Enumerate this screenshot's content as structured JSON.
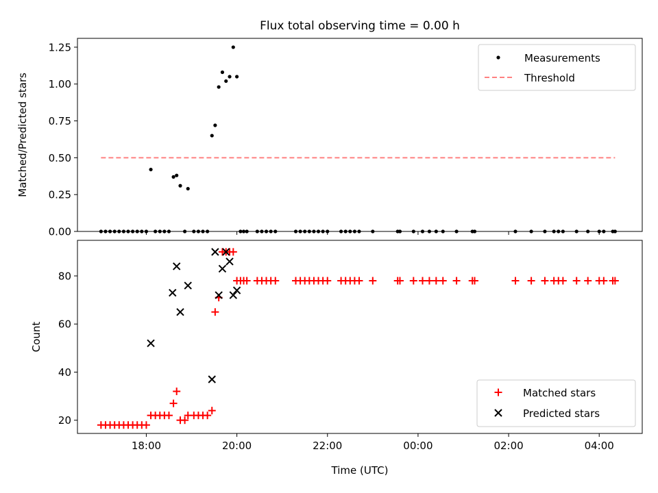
{
  "chart_data": [
    {
      "type": "scatter",
      "title": "Flux total observing time = 0.00 h",
      "ylabel": "Matched/Predicted stars",
      "xlabel": "",
      "x_unit": "hours since 00:00 of the first observing day",
      "xlim": [
        16.48,
        28.95
      ],
      "ylim": [
        0,
        1.31
      ],
      "yticks": [
        0.0,
        0.25,
        0.5,
        0.75,
        1.0,
        1.25
      ],
      "ytick_labels": [
        "0.00",
        "0.25",
        "0.50",
        "0.75",
        "1.00",
        "1.25"
      ],
      "legend": {
        "position": "top-right",
        "entries": [
          "Measurements",
          "Threshold"
        ]
      },
      "series": [
        {
          "name": "Measurements",
          "style": "dot",
          "color": "#000000",
          "points": [
            [
              17.0,
              0
            ],
            [
              17.1,
              0
            ],
            [
              17.2,
              0
            ],
            [
              17.3,
              0
            ],
            [
              17.4,
              0
            ],
            [
              17.5,
              0
            ],
            [
              17.6,
              0
            ],
            [
              17.7,
              0
            ],
            [
              17.8,
              0
            ],
            [
              17.9,
              0
            ],
            [
              18.0,
              0
            ],
            [
              18.1,
              0.42
            ],
            [
              18.2,
              0
            ],
            [
              18.3,
              0
            ],
            [
              18.4,
              0
            ],
            [
              18.5,
              0
            ],
            [
              18.6,
              0.37
            ],
            [
              18.67,
              0.38
            ],
            [
              18.75,
              0.31
            ],
            [
              18.85,
              0
            ],
            [
              18.92,
              0.29
            ],
            [
              19.05,
              0
            ],
            [
              19.15,
              0
            ],
            [
              19.25,
              0
            ],
            [
              19.35,
              0
            ],
            [
              19.45,
              0.65
            ],
            [
              19.52,
              0.72
            ],
            [
              19.6,
              0.98
            ],
            [
              19.68,
              1.08
            ],
            [
              19.76,
              1.02
            ],
            [
              19.84,
              1.05
            ],
            [
              19.92,
              1.25
            ],
            [
              20.0,
              1.05
            ],
            [
              20.08,
              0
            ],
            [
              20.15,
              0
            ],
            [
              20.22,
              0
            ],
            [
              20.45,
              0
            ],
            [
              20.55,
              0
            ],
            [
              20.65,
              0
            ],
            [
              20.75,
              0
            ],
            [
              20.85,
              0
            ],
            [
              21.3,
              0
            ],
            [
              21.4,
              0
            ],
            [
              21.5,
              0
            ],
            [
              21.6,
              0
            ],
            [
              21.7,
              0
            ],
            [
              21.8,
              0
            ],
            [
              21.9,
              0
            ],
            [
              22.0,
              0
            ],
            [
              22.3,
              0
            ],
            [
              22.4,
              0
            ],
            [
              22.5,
              0
            ],
            [
              22.6,
              0
            ],
            [
              22.7,
              0
            ],
            [
              23.0,
              0
            ],
            [
              23.55,
              0
            ],
            [
              23.6,
              0
            ],
            [
              23.9,
              0
            ],
            [
              24.1,
              0
            ],
            [
              24.25,
              0
            ],
            [
              24.4,
              0
            ],
            [
              24.55,
              0
            ],
            [
              24.85,
              0
            ],
            [
              25.2,
              0
            ],
            [
              25.25,
              0
            ],
            [
              26.15,
              0
            ],
            [
              26.5,
              0
            ],
            [
              26.8,
              0
            ],
            [
              27.0,
              0
            ],
            [
              27.1,
              0
            ],
            [
              27.2,
              0
            ],
            [
              27.5,
              0
            ],
            [
              27.75,
              0
            ],
            [
              28.0,
              0
            ],
            [
              28.1,
              0
            ],
            [
              28.3,
              0
            ],
            [
              28.35,
              0
            ]
          ]
        },
        {
          "name": "Threshold",
          "style": "dashed-line",
          "color": "#ff8080",
          "x": [
            17.0,
            28.35
          ],
          "y": [
            0.5,
            0.5
          ]
        }
      ]
    },
    {
      "type": "scatter",
      "title": "",
      "ylabel": "Count",
      "xlabel": "Time (UTC)",
      "x_unit": "hours since 00:00 of the first observing day",
      "xlim": [
        16.48,
        28.95
      ],
      "ylim": [
        14.5,
        94.8
      ],
      "xticks": [
        18,
        20,
        22,
        24,
        26,
        28
      ],
      "xtick_labels": [
        "18:00",
        "20:00",
        "22:00",
        "00:00",
        "02:00",
        "04:00"
      ],
      "yticks": [
        20,
        40,
        60,
        80
      ],
      "ytick_labels": [
        "20",
        "40",
        "60",
        "80"
      ],
      "legend": {
        "position": "bottom-right",
        "entries": [
          "Matched stars",
          "Predicted stars"
        ]
      },
      "series": [
        {
          "name": "Matched stars",
          "marker": "plus",
          "color": "#ff0000",
          "points": [
            [
              17.0,
              18
            ],
            [
              17.1,
              18
            ],
            [
              17.2,
              18
            ],
            [
              17.3,
              18
            ],
            [
              17.4,
              18
            ],
            [
              17.5,
              18
            ],
            [
              17.6,
              18
            ],
            [
              17.7,
              18
            ],
            [
              17.8,
              18
            ],
            [
              17.9,
              18
            ],
            [
              18.0,
              18
            ],
            [
              18.1,
              22
            ],
            [
              18.2,
              22
            ],
            [
              18.3,
              22
            ],
            [
              18.4,
              22
            ],
            [
              18.5,
              22
            ],
            [
              18.6,
              27
            ],
            [
              18.67,
              32
            ],
            [
              18.75,
              20
            ],
            [
              18.85,
              20
            ],
            [
              18.92,
              22
            ],
            [
              19.05,
              22
            ],
            [
              19.15,
              22
            ],
            [
              19.25,
              22
            ],
            [
              19.35,
              22
            ],
            [
              19.45,
              24
            ],
            [
              19.52,
              65
            ],
            [
              19.6,
              71
            ],
            [
              19.68,
              90
            ],
            [
              19.76,
              90
            ],
            [
              19.84,
              90
            ],
            [
              19.92,
              90
            ],
            [
              20.0,
              78
            ],
            [
              20.08,
              78
            ],
            [
              20.15,
              78
            ],
            [
              20.22,
              78
            ],
            [
              20.45,
              78
            ],
            [
              20.55,
              78
            ],
            [
              20.65,
              78
            ],
            [
              20.75,
              78
            ],
            [
              20.85,
              78
            ],
            [
              21.3,
              78
            ],
            [
              21.4,
              78
            ],
            [
              21.5,
              78
            ],
            [
              21.6,
              78
            ],
            [
              21.7,
              78
            ],
            [
              21.8,
              78
            ],
            [
              21.9,
              78
            ],
            [
              22.0,
              78
            ],
            [
              22.3,
              78
            ],
            [
              22.4,
              78
            ],
            [
              22.5,
              78
            ],
            [
              22.6,
              78
            ],
            [
              22.7,
              78
            ],
            [
              23.0,
              78
            ],
            [
              23.55,
              78
            ],
            [
              23.6,
              78
            ],
            [
              23.9,
              78
            ],
            [
              24.1,
              78
            ],
            [
              24.25,
              78
            ],
            [
              24.4,
              78
            ],
            [
              24.55,
              78
            ],
            [
              24.85,
              78
            ],
            [
              25.2,
              78
            ],
            [
              25.25,
              78
            ],
            [
              26.15,
              78
            ],
            [
              26.5,
              78
            ],
            [
              26.8,
              78
            ],
            [
              27.0,
              78
            ],
            [
              27.1,
              78
            ],
            [
              27.2,
              78
            ],
            [
              27.5,
              78
            ],
            [
              27.75,
              78
            ],
            [
              28.0,
              78
            ],
            [
              28.1,
              78
            ],
            [
              28.3,
              78
            ],
            [
              28.35,
              78
            ]
          ]
        },
        {
          "name": "Predicted stars",
          "marker": "x",
          "color": "#000000",
          "points": [
            [
              18.1,
              52
            ],
            [
              18.58,
              73
            ],
            [
              18.67,
              84
            ],
            [
              18.75,
              65
            ],
            [
              18.92,
              76
            ],
            [
              19.45,
              37
            ],
            [
              19.52,
              90
            ],
            [
              19.6,
              72
            ],
            [
              19.68,
              83
            ],
            [
              19.76,
              90
            ],
            [
              19.84,
              86
            ],
            [
              19.92,
              72
            ],
            [
              20.0,
              74
            ]
          ]
        }
      ]
    }
  ]
}
